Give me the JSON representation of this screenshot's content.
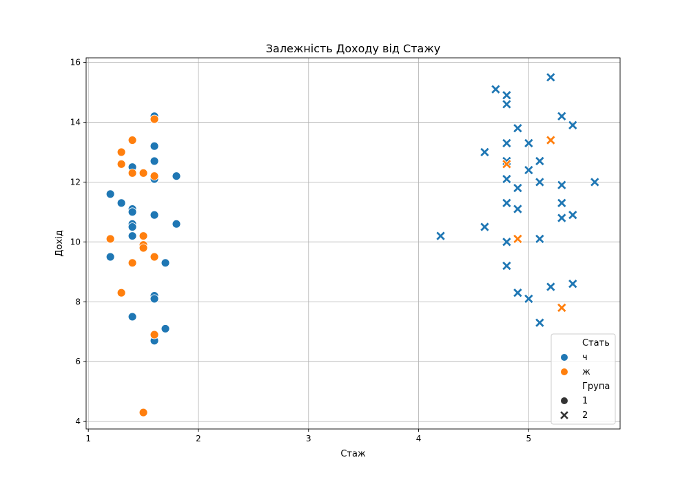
{
  "chart_data": {
    "type": "scatter",
    "title": "Залежність Доходу від Стажу",
    "xlabel": "Стаж",
    "ylabel": "Дохід",
    "xlim": [
      0.98,
      5.83
    ],
    "ylim": [
      3.75,
      16.15
    ],
    "xticks": [
      1,
      2,
      3,
      4,
      5
    ],
    "yticks": [
      4,
      6,
      8,
      10,
      12,
      14,
      16
    ],
    "grid": true,
    "colors": {
      "ч": "#1f77b4",
      "ж": "#ff7f0e"
    },
    "legend": {
      "placement": "lower right",
      "hue_title": "Стать",
      "hue_entries": [
        "ч",
        "ж"
      ],
      "style_title": "Група",
      "style_entries": [
        "1",
        "2"
      ]
    },
    "series": [
      {
        "sex": "ч",
        "group": "1",
        "marker": "circle",
        "points": [
          [
            1.2,
            11.6
          ],
          [
            1.2,
            9.5
          ],
          [
            1.3,
            11.3
          ],
          [
            1.4,
            12.5
          ],
          [
            1.4,
            11.1
          ],
          [
            1.4,
            11.0
          ],
          [
            1.4,
            10.6
          ],
          [
            1.4,
            10.5
          ],
          [
            1.4,
            10.2
          ],
          [
            1.4,
            7.5
          ],
          [
            1.6,
            14.2
          ],
          [
            1.6,
            13.2
          ],
          [
            1.6,
            12.7
          ],
          [
            1.6,
            12.1
          ],
          [
            1.6,
            10.9
          ],
          [
            1.6,
            8.2
          ],
          [
            1.6,
            8.1
          ],
          [
            1.6,
            6.7
          ],
          [
            1.7,
            9.3
          ],
          [
            1.7,
            7.1
          ],
          [
            1.8,
            12.2
          ],
          [
            1.8,
            10.6
          ]
        ]
      },
      {
        "sex": "ж",
        "group": "1",
        "marker": "circle",
        "points": [
          [
            1.2,
            10.1
          ],
          [
            1.3,
            13.0
          ],
          [
            1.3,
            12.6
          ],
          [
            1.3,
            8.3
          ],
          [
            1.4,
            13.4
          ],
          [
            1.4,
            12.3
          ],
          [
            1.4,
            9.3
          ],
          [
            1.5,
            12.3
          ],
          [
            1.5,
            10.2
          ],
          [
            1.5,
            9.9
          ],
          [
            1.5,
            9.8
          ],
          [
            1.5,
            4.3
          ],
          [
            1.6,
            14.1
          ],
          [
            1.6,
            12.2
          ],
          [
            1.6,
            9.5
          ],
          [
            1.6,
            6.9
          ]
        ]
      },
      {
        "sex": "ч",
        "group": "2",
        "marker": "x",
        "points": [
          [
            4.2,
            10.2
          ],
          [
            4.6,
            13.0
          ],
          [
            4.6,
            10.5
          ],
          [
            4.7,
            15.1
          ],
          [
            4.8,
            14.9
          ],
          [
            4.8,
            14.6
          ],
          [
            4.8,
            13.3
          ],
          [
            4.8,
            12.7
          ],
          [
            4.8,
            12.1
          ],
          [
            4.8,
            11.3
          ],
          [
            4.8,
            10.0
          ],
          [
            4.8,
            9.2
          ],
          [
            4.9,
            13.8
          ],
          [
            4.9,
            11.8
          ],
          [
            4.9,
            11.1
          ],
          [
            4.9,
            8.3
          ],
          [
            5.0,
            13.3
          ],
          [
            5.0,
            12.4
          ],
          [
            5.0,
            8.1
          ],
          [
            5.1,
            12.7
          ],
          [
            5.1,
            12.0
          ],
          [
            5.1,
            10.1
          ],
          [
            5.1,
            7.3
          ],
          [
            5.2,
            15.5
          ],
          [
            5.2,
            8.5
          ],
          [
            5.3,
            14.2
          ],
          [
            5.3,
            11.9
          ],
          [
            5.3,
            11.3
          ],
          [
            5.3,
            10.8
          ],
          [
            5.4,
            13.9
          ],
          [
            5.4,
            10.9
          ],
          [
            5.4,
            8.6
          ],
          [
            5.6,
            12.0
          ]
        ]
      },
      {
        "sex": "ж",
        "group": "2",
        "marker": "x",
        "points": [
          [
            4.8,
            12.6
          ],
          [
            4.9,
            10.1
          ],
          [
            5.2,
            13.4
          ],
          [
            5.3,
            7.8
          ]
        ]
      }
    ]
  }
}
